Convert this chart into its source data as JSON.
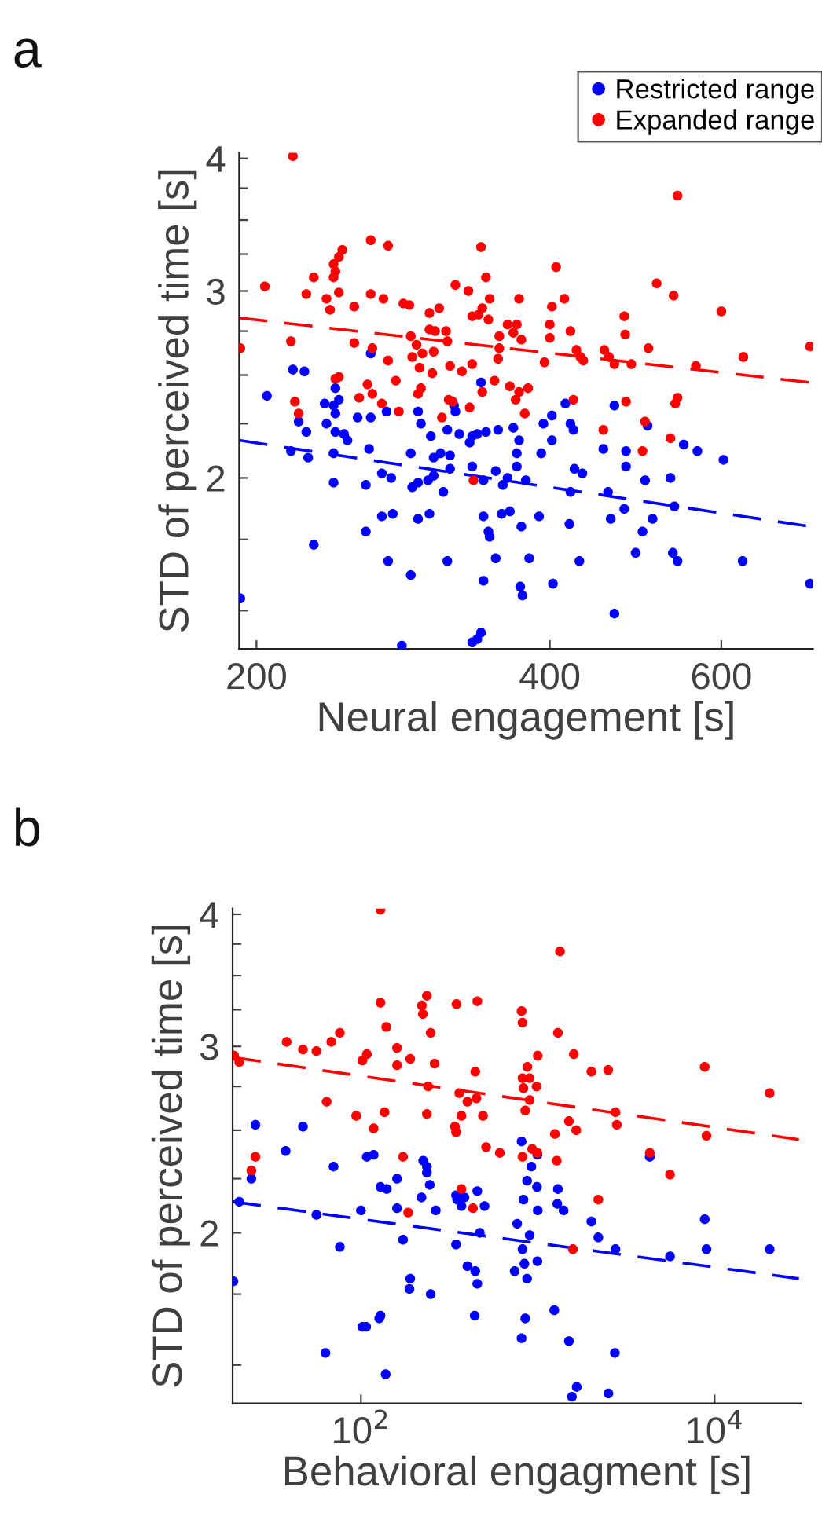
{
  "chart_data": [
    {
      "type": "scatter",
      "annotations": [
        "a"
      ],
      "xlabel": "Neural engagement [s]",
      "ylabel": "STD of perceived time [s]",
      "log": "xy",
      "xlim": [
        192,
        745
      ],
      "ylim": [
        1.38,
        4.05
      ],
      "xticks": [
        200,
        400,
        600
      ],
      "yticks": [
        {
          "value": 1.5,
          "label": null
        },
        {
          "value": 1.75,
          "label": null
        },
        2,
        {
          "value": 2.25,
          "label": null
        },
        {
          "value": 2.5,
          "label": null
        },
        {
          "value": 2.75,
          "label": null
        },
        3,
        {
          "value": 3.25,
          "label": null
        },
        {
          "value": 3.5,
          "label": null
        },
        {
          "value": 3.75,
          "label": null
        },
        4
      ],
      "grid": false,
      "legend": "top right",
      "series": [
        {
          "name": "Restricted range",
          "color": "#0000ff",
          "marker": "circle",
          "x": [
            262,
            340,
            205,
            218,
            224,
            221,
            225,
            217,
            226,
            192.5,
            229,
            241,
            235,
            240,
            243,
            236,
            241,
            241,
            246,
            248,
            240,
            254,
            262,
            272,
            261,
            240,
            259,
            269,
            275,
            269,
            276,
            259,
            273,
            288,
            282,
            293,
            295,
            302,
            288,
            304,
            309,
            316,
            314,
            319,
            320,
            316,
            304,
            300,
            293,
            289,
            311,
            301,
            293,
            314,
            323,
            333,
            337,
            331,
            344,
            333,
            342,
            352,
            354,
            367,
            372,
            370,
            370,
            362,
            358,
            378,
            342,
            346,
            347,
            357,
            364,
            374,
            352,
            381,
            342,
            373,
            375,
            333,
            337,
            340,
            394,
            402,
            415,
            402,
            392,
            420,
            423,
            424,
            432,
            390,
            420,
            429,
            403,
            454,
            479,
            479,
            466,
            459,
            477,
            462,
            419,
            490,
            466,
            504,
            501,
            510,
            498,
            532,
            537,
            535,
            541,
            549,
            567,
            603,
            631,
            740
          ],
          "values": [
            2.62,
            2.46,
            2.39,
            2.53,
            2.52,
            2.26,
            2.21,
            2.12,
            2.09,
            1.54,
            1.73,
            2.43,
            2.35,
            2.34,
            2.37,
            2.25,
            2.3,
            2.21,
            2.2,
            2.17,
            2.11,
            2.28,
            2.28,
            2.31,
            2.13,
            1.98,
            1.97,
            2.02,
            2.0,
            1.84,
            1.85,
            1.78,
            1.67,
            1.62,
            1.39,
            2.31,
            2.25,
            2.19,
            2.11,
            2.09,
            2.11,
            2.1,
            2.22,
            2.34,
            2.31,
            2.04,
            2.01,
            1.99,
            1.98,
            1.96,
            1.94,
            1.85,
            1.83,
            1.67,
            2.2,
            2.19,
            2.2,
            2.16,
            2.21,
            2.05,
            1.99,
            2.03,
            2.22,
            2.23,
            2.17,
            2.11,
            2.05,
            2.0,
            1.97,
            1.99,
            1.84,
            1.78,
            1.76,
            1.85,
            1.86,
            1.8,
            1.68,
            1.68,
            1.6,
            1.58,
            1.55,
            1.4,
            1.41,
            1.43,
            2.25,
            2.29,
            2.35,
            2.17,
            2.11,
            2.25,
            2.22,
            2.04,
            2.02,
            1.84,
            1.94,
            1.67,
            1.59,
            2.13,
            2.12,
            2.05,
            2.34,
            1.94,
            1.87,
            1.83,
            1.81,
            1.7,
            1.49,
            2.24,
            1.99,
            1.83,
            1.78,
            2.0,
            1.88,
            1.7,
            1.67,
            2.15,
            2.12,
            2.08,
            1.67,
            1.59
          ]
        },
        {
          "name": "Expanded range",
          "color": "#ff0000",
          "marker": "circle",
          "x": [
            218,
            541,
            262,
            273,
            340,
            245,
            243,
            240,
            241,
            240,
            406,
            229,
            204,
            225,
            243,
            236,
            262,
            270,
            283,
            287,
            238,
            252,
            320,
            330,
            344,
            347,
            372,
            414,
            402,
            341,
            338,
            346,
            333,
            301,
            308,
            515,
            536,
            600,
            477,
            478,
            400,
            400,
            420,
            362,
            370,
            367,
            374,
            355,
            301,
            305,
            313,
            288,
            314,
            292,
            304,
            296,
            289,
            273,
            263,
            252,
            217,
            192.5,
            426,
            430,
            433,
            395,
            355,
            354,
            333,
            316,
            325,
            303,
            294,
            278,
            243,
            241,
            260,
            255,
            263,
            269,
            280,
            293,
            295,
            341,
            351,
            364,
            372,
            380,
            369,
            377,
            315,
            318,
            331,
            310,
            455,
            460,
            466,
            485,
            505,
            565,
            632,
            740,
            423,
            479,
            541,
            538,
            501,
            454,
            532,
            498,
            219,
            221,
            334
          ],
          "values": [
            4.02,
            3.69,
            3.35,
            3.31,
            3.3,
            3.28,
            3.23,
            3.18,
            3.13,
            3.09,
            3.16,
            3.09,
            3.03,
            2.98,
            2.99,
            2.95,
            2.98,
            2.95,
            2.92,
            2.91,
            2.88,
            2.9,
            3.04,
            3.0,
            3.09,
            2.95,
            2.95,
            2.95,
            2.9,
            2.89,
            2.85,
            2.82,
            2.84,
            2.86,
            2.89,
            3.05,
            2.97,
            2.87,
            2.84,
            2.73,
            2.79,
            2.71,
            2.75,
            2.79,
            2.79,
            2.74,
            2.7,
            2.72,
            2.76,
            2.75,
            2.75,
            2.72,
            2.69,
            2.67,
            2.63,
            2.62,
            2.6,
            2.58,
            2.65,
            2.68,
            2.69,
            2.65,
            2.64,
            2.6,
            2.58,
            2.57,
            2.65,
            2.59,
            2.56,
            2.55,
            2.52,
            2.51,
            2.54,
            2.47,
            2.49,
            2.48,
            2.45,
            2.38,
            2.4,
            2.35,
            2.31,
            2.4,
            2.43,
            2.41,
            2.47,
            2.44,
            2.41,
            2.43,
            2.37,
            2.3,
            2.37,
            2.36,
            2.33,
            2.28,
            2.64,
            2.6,
            2.56,
            2.56,
            2.65,
            2.55,
            2.6,
            2.66,
            2.37,
            2.36,
            2.38,
            2.35,
            2.26,
            2.22,
            2.18,
            2.12,
            2.36,
            2.3,
            1.99
          ]
        },
        {
          "type": "line",
          "color": "#ff0000",
          "line_style": "dashed",
          "x": [
            192,
            740
          ],
          "values": [
            2.83,
            2.46
          ]
        },
        {
          "type": "line",
          "color": "#0000ff",
          "line_style": "dashed",
          "x": [
            192,
            740
          ],
          "values": [
            2.17,
            1.8
          ]
        }
      ]
    },
    {
      "type": "scatter",
      "annotations": [
        "b"
      ],
      "xlabel": "Behavioral engagment [s]",
      "ylabel": "STD of perceived time [s]",
      "log": "xy",
      "xlim": [
        18.8,
        31000
      ],
      "ylim": [
        1.38,
        4.05
      ],
      "xticks": [
        {
          "value": 100,
          "label": "10$^{2}$"
        },
        {
          "value": 10000,
          "label": "10$^{4}$"
        }
      ],
      "yticks": [
        {
          "value": 1.5,
          "label": null
        },
        {
          "value": 1.75,
          "label": null
        },
        2,
        {
          "value": 2.25,
          "label": null
        },
        {
          "value": 2.5,
          "label": null
        },
        {
          "value": 2.75,
          "label": null
        },
        3,
        {
          "value": 3.25,
          "label": null
        },
        {
          "value": 3.5,
          "label": null
        },
        {
          "value": 3.75,
          "label": null
        },
        4
      ],
      "grid": false,
      "series": [
        {
          "color": "#0000ff",
          "marker": "circle",
          "x": [
            25.3,
            47,
            37.5,
            70,
            108,
            118,
            225,
            236,
            236,
            160,
            245,
            129,
            140,
            220,
            100,
            160,
            265,
            345,
            350,
            370,
            385,
            455,
            500,
            830,
            810,
            995,
            920,
            870,
            990,
            1300,
            1290,
            1400,
            1000,
            765,
            470,
            900,
            820,
            345,
            173,
            76,
            56,
            20.5,
            24,
            19,
            400,
            443,
            455,
            740,
            840,
            995,
            870,
            190,
            188,
            248,
            129,
            102,
            440,
            850,
            1240,
            2010,
            2200,
            2750,
            4300,
            5600,
            8800,
            9000,
            20500,
            63,
            107,
            127,
            138,
            810,
            1500,
            2730,
            1660,
            1560,
            2510
          ],
          "values": [
            2.53,
            2.52,
            2.39,
            2.31,
            2.36,
            2.37,
            2.34,
            2.31,
            2.28,
            2.25,
            2.22,
            2.21,
            2.2,
            2.16,
            2.1,
            2.11,
            2.1,
            2.17,
            2.15,
            2.12,
            2.16,
            2.19,
            2.12,
            2.15,
            2.44,
            2.37,
            2.31,
            2.24,
            2.21,
            2.2,
            2.13,
            2.1,
            2.1,
            2.04,
            2.0,
            1.99,
            1.93,
            1.95,
            1.97,
            1.94,
            2.08,
            2.14,
            2.25,
            1.8,
            1.86,
            1.84,
            1.79,
            1.84,
            1.87,
            1.88,
            1.81,
            1.81,
            1.77,
            1.75,
            1.67,
            1.63,
            1.67,
            1.66,
            1.69,
            2.05,
            1.98,
            1.93,
            2.36,
            1.9,
            2.06,
            1.93,
            1.93,
            1.54,
            1.63,
            1.66,
            1.47,
            1.59,
            1.58,
            1.54,
            1.43,
            1.4,
            1.41
          ]
        },
        {
          "color": "#ff0000",
          "marker": "circle",
          "x": [
            129,
            1336,
            129,
            236,
            221,
            224,
            347,
            455,
            810,
            820,
            139,
            248,
            76,
            68,
            38,
            47,
            56,
            108,
            102,
            160,
            160,
            190,
            261,
            1300,
            1600,
            1000,
            19.2,
            20.5,
            443,
            873,
            820,
            900,
            830,
            985,
            240,
            360,
            400,
            450,
            490,
            370,
            340,
            345,
            900,
            850,
            236,
            136,
            94,
            118,
            64,
            2010,
            2500,
            1500,
            1650,
            1250,
            2750,
            2800,
            8800,
            20500,
            9000,
            510,
            610,
            820,
            930,
            995,
            1280,
            4300,
            5600,
            173,
            25.3,
            24,
            370,
            430,
            185,
            2200,
            1580
          ],
          "values": [
            4.04,
            3.69,
            3.3,
            3.35,
            3.28,
            3.22,
            3.29,
            3.31,
            3.24,
            3.16,
            3.13,
            3.09,
            3.09,
            3.03,
            3.03,
            2.98,
            2.97,
            2.95,
            2.91,
            2.99,
            2.88,
            2.92,
            2.89,
            3.09,
            2.95,
            2.94,
            2.94,
            2.9,
            2.84,
            2.87,
            2.8,
            2.8,
            2.74,
            2.75,
            2.75,
            2.71,
            2.66,
            2.68,
            2.58,
            2.58,
            2.52,
            2.49,
            2.67,
            2.61,
            2.59,
            2.6,
            2.58,
            2.51,
            2.66,
            2.84,
            2.85,
            2.55,
            2.5,
            2.48,
            2.6,
            2.53,
            2.87,
            2.71,
            2.47,
            2.41,
            2.38,
            2.36,
            2.4,
            2.38,
            2.34,
            2.38,
            2.27,
            2.36,
            2.36,
            2.29,
            2.2,
            2.11,
            2.09,
            2.15,
            1.93
          ]
        },
        {
          "type": "line",
          "color": "#ff0000",
          "line_style": "dashed",
          "x": [
            18.8,
            30000
          ],
          "values": [
            2.93,
            2.45
          ]
        },
        {
          "type": "line",
          "color": "#0000ff",
          "line_style": "dashed",
          "x": [
            18.8,
            30000
          ],
          "values": [
            2.14,
            1.81
          ]
        }
      ]
    }
  ]
}
